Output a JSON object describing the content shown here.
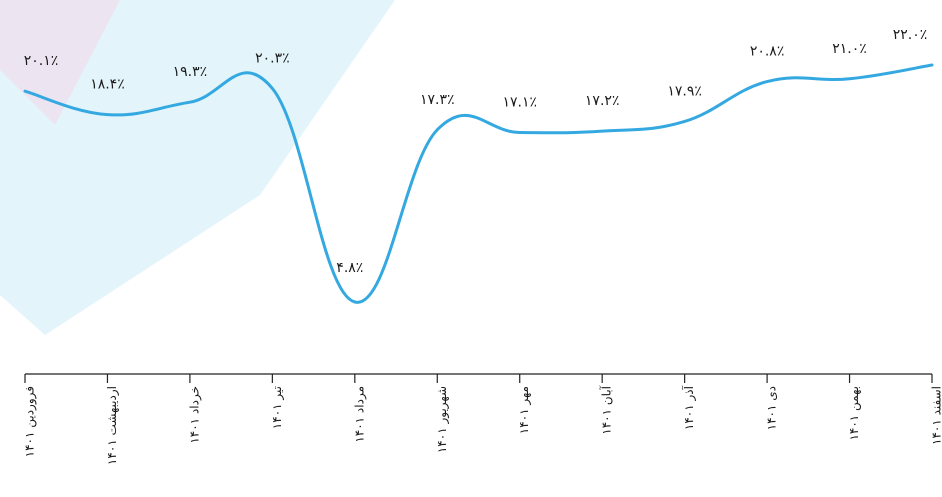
{
  "chart_data": {
    "type": "line",
    "categories": [
      "فروردین ۱۴۰۱",
      "اردیبهشت ۱۴۰۱",
      "خرداد ۱۴۰۱",
      "تیر ۱۴۰۱",
      "مرداد ۱۴۰۱",
      "شهریور ۱۴۰۱",
      "مهر ۱۴۰۱",
      "آبان ۱۴۰۱",
      "آذر ۱۴۰۱",
      "دی ۱۴۰۱",
      "بهمن ۱۴۰۱",
      "اسفند ۱۴۰۱"
    ],
    "values": [
      20.1,
      18.4,
      19.3,
      20.3,
      4.8,
      17.3,
      17.1,
      17.2,
      17.9,
      20.8,
      21.0,
      22.0
    ],
    "data_labels": [
      "۲۰.۱٪",
      "۱۸.۴٪",
      "۱۹.۳٪",
      "۲۰.۳٪",
      "۴.۸٪",
      "۱۷.۳٪",
      "۱۷.۱٪",
      "۱۷.۲٪",
      "۱۷.۹٪",
      "۲۰.۸٪",
      "۲۱.۰٪",
      "۲۲.۰٪"
    ],
    "title": "",
    "xlabel": "",
    "ylabel": "",
    "grid": false,
    "line_color": "#34a8e0",
    "axis_color": "#222222",
    "background_shape_colors": [
      "#e3f4fb",
      "#ece4f1"
    ]
  }
}
